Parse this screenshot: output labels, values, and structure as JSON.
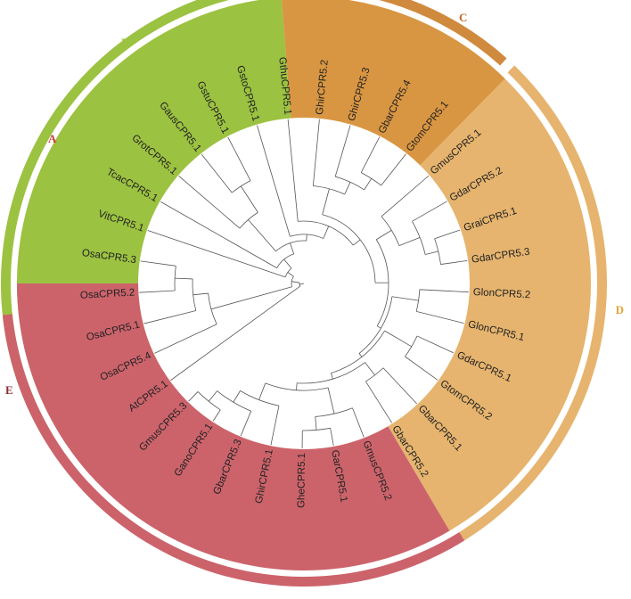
{
  "diagram": {
    "clades": [
      {
        "name": "A",
        "fill": "#cf3a3a",
        "ring": "#cf3a3a",
        "label_color": "#cf3a3a",
        "leaves": [
          "AtCPR5.1"
        ]
      },
      {
        "name": "B",
        "fill": "#9cc241",
        "ring": "#9cc241",
        "label_color": "#9cc241",
        "leaves": [
          "OsaCPR5.4",
          "OsaCPR5.1",
          "OsaCPR5.2",
          "OsaCPR5.3"
        ]
      },
      {
        "name": "C",
        "fill": "#d99642",
        "ring": "#d08a3e",
        "label_color": "#c06a2b",
        "leaves": [
          "VitCPR5.1",
          "TcacCPR5.1",
          "GrotCPR5.1",
          "GausCPR5.1",
          "GstuCPR5.1"
        ]
      },
      {
        "name": "D",
        "fill": "#e6b46e",
        "ring": "#e6b46e",
        "label_color": "#e3a43a",
        "leaves": [
          "GstoCPR5.1",
          "GthuCPR5.1",
          "GhirCPR5.2",
          "GhirCPR5.3",
          "GbarCPR5.4",
          "GtomCPR5.1",
          "GmusCPR5.1",
          "GdarCPR5.2",
          "GraiCPR5.1",
          "GdarCPR5.3"
        ]
      },
      {
        "name": "E",
        "fill": "#cc636b",
        "ring": "#cc636b",
        "label_color": "#8e2a30",
        "leaves": [
          "GlonCPR5.2",
          "GlonCPR5.1",
          "GdarCPR5.1",
          "GtomCPR5.2",
          "GbarCPR5.1",
          "GbarCPR5.2",
          "GmusCPR5.2",
          "GarCPR5.1",
          "GheCPR5.1",
          "GhirCPR5.1",
          "GbarCPR5.3",
          "GanoCPR5.1",
          "GmusCPR5.3"
        ]
      }
    ]
  }
}
